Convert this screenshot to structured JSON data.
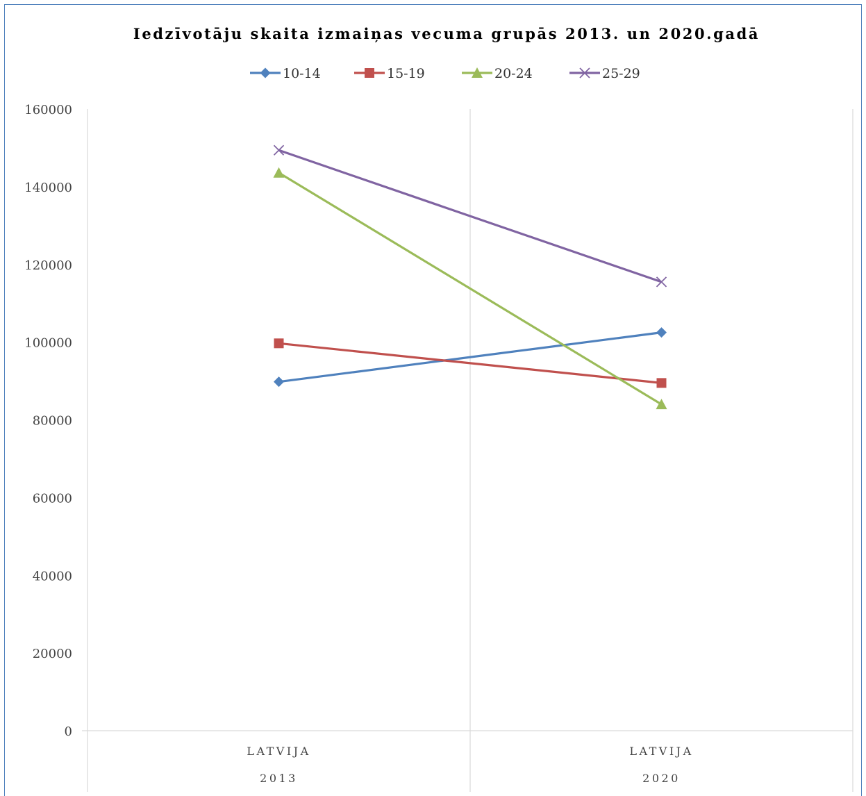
{
  "chart_data": {
    "type": "line",
    "title": "Iedzīvotāju skaita izmaiņas vecuma grupās 2013. un 2020.gadā",
    "categories": [
      {
        "region": "LATVIJA",
        "year": "2013"
      },
      {
        "region": "LATVIJA",
        "year": "2020"
      }
    ],
    "series": [
      {
        "name": "10-14",
        "color": "#4f81bd",
        "marker": "diamond",
        "values": [
          89800,
          102500
        ]
      },
      {
        "name": "15-19",
        "color": "#c0504d",
        "marker": "square",
        "values": [
          99700,
          89500
        ]
      },
      {
        "name": "20-24",
        "color": "#9bbb59",
        "marker": "triangle",
        "values": [
          143600,
          84000
        ]
      },
      {
        "name": "25-29",
        "color": "#8064a2",
        "marker": "x",
        "values": [
          149400,
          115500
        ]
      }
    ],
    "ylim": [
      0,
      160000
    ],
    "yticks": [
      "0",
      "20000",
      "40000",
      "60000",
      "80000",
      "100000",
      "120000",
      "140000",
      "160000"
    ],
    "grid": "vertical",
    "legend_position": "top"
  }
}
